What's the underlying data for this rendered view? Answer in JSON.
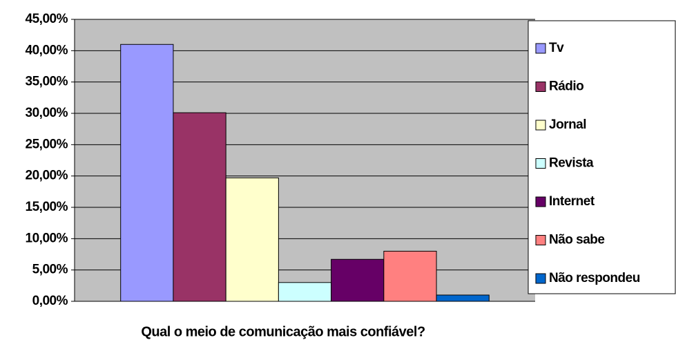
{
  "chart_data": {
    "type": "bar",
    "x_label": "Qual o meio de comunicação mais confiável?",
    "categories": [
      null
    ],
    "series": [
      {
        "name": "Tv",
        "color": "#9999ff",
        "values": [
          41.0
        ]
      },
      {
        "name": "Rádio",
        "color": "#993366",
        "values": [
          30.1
        ]
      },
      {
        "name": "Jornal",
        "color": "#ffffcc",
        "values": [
          19.7
        ]
      },
      {
        "name": "Revista",
        "color": "#ccffff",
        "values": [
          3.0
        ]
      },
      {
        "name": "Internet",
        "color": "#660066",
        "values": [
          6.7
        ]
      },
      {
        "name": "Não sabe",
        "color": "#ff8080",
        "values": [
          8.0
        ]
      },
      {
        "name": "Não respondeu",
        "color": "#0066cc",
        "values": [
          1.0
        ]
      }
    ],
    "ylim": [
      0,
      45
    ],
    "yticks": [
      {
        "value": 0,
        "label": "0,00%"
      },
      {
        "value": 5,
        "label": "5,00%"
      },
      {
        "value": 10,
        "label": "10,00%"
      },
      {
        "value": 15,
        "label": "15,00%"
      },
      {
        "value": 20,
        "label": "20,00%"
      },
      {
        "value": 25,
        "label": "25,00%"
      },
      {
        "value": 30,
        "label": "30,00%"
      },
      {
        "value": 35,
        "label": "35,00%"
      },
      {
        "value": 40,
        "label": "40,00%"
      },
      {
        "value": 45,
        "label": "45,00%"
      }
    ],
    "grid": true,
    "plot_background": "#c0c0c0",
    "legend": "right"
  }
}
